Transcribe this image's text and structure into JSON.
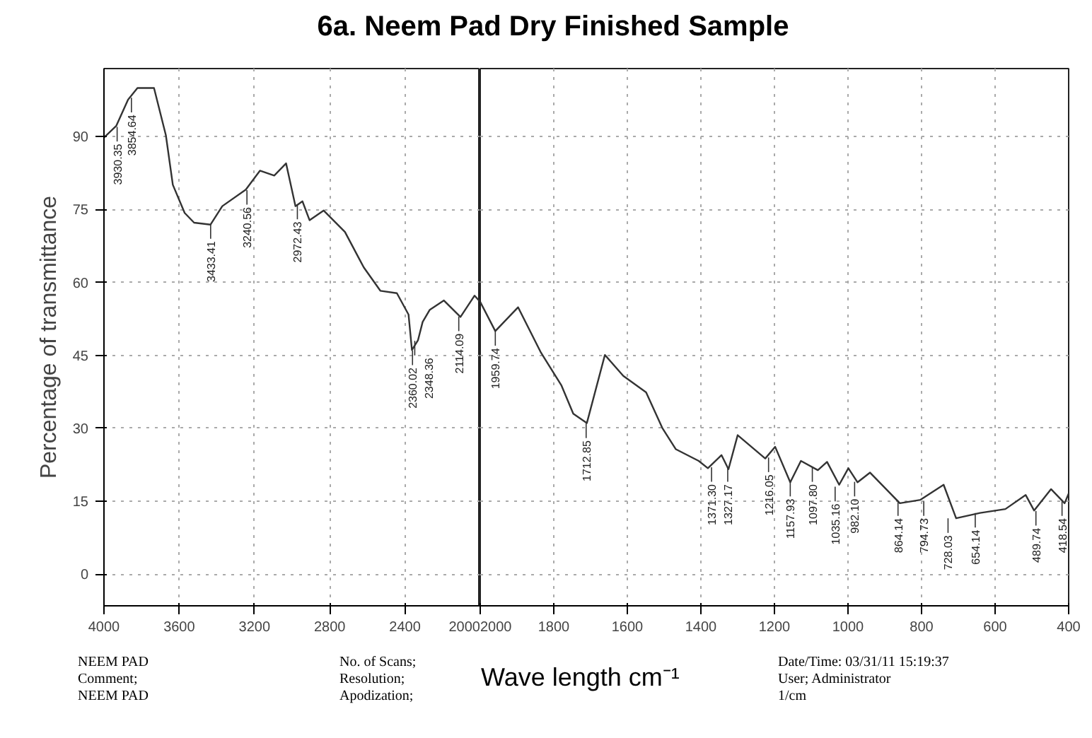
{
  "chart_data": [
    {
      "type": "line",
      "title": "6a. Neem Pad Dry Finished Sample",
      "ylabel": "Percentage of transmittance",
      "color": "#333333",
      "grid": true,
      "xlim": [
        4000,
        2000
      ],
      "xticks": [
        4000,
        3600,
        3200,
        2800,
        2400,
        2000
      ],
      "ylim": [
        -6.5,
        104
      ],
      "yticks": [
        0,
        15,
        30,
        45,
        60,
        75,
        90
      ],
      "x": [
        4000,
        3935,
        3872,
        3822,
        3734,
        3671,
        3634,
        3571,
        3521,
        3434,
        3371,
        3246,
        3171,
        3095,
        3032,
        2982,
        2945,
        2907,
        2832,
        2719,
        2619,
        2531,
        2443,
        2381,
        2363,
        2331,
        2306,
        2268,
        2193,
        2105,
        2030,
        2000
      ],
      "values": [
        89.8,
        92.2,
        97.6,
        100,
        100,
        90.3,
        80.1,
        74.3,
        72.3,
        71.9,
        75.7,
        79.1,
        83,
        82,
        84.5,
        75.7,
        76.7,
        72.8,
        74.8,
        70.4,
        63.1,
        58.3,
        57.8,
        53.4,
        46.1,
        48.1,
        51.9,
        54.4,
        56.3,
        52.9,
        57.3,
        56
      ],
      "annotations": [
        {
          "text": "3930.35",
          "x": 3930,
          "y": 92
        },
        {
          "text": "3854.64",
          "x": 3854,
          "y": 98
        },
        {
          "text": "3433.41",
          "x": 3433,
          "y": 72
        },
        {
          "text": "3240.56",
          "x": 3240,
          "y": 79
        },
        {
          "text": "2972.43",
          "x": 2972,
          "y": 76
        },
        {
          "text": "2360.02",
          "x": 2360,
          "y": 46
        },
        {
          "text": "2348.36",
          "x": 2348,
          "y": 48
        },
        {
          "text": "2114.09",
          "x": 2114,
          "y": 53
        },
        "NEEM PAD",
        "Comment;",
        "NEEM PAD",
        "No. of Scans;",
        "Resolution;",
        "Apodization;",
        "Date/Time: 03/31/11 15:19:37",
        "User;",
        "Administrator"
      ]
    },
    {
      "type": "line",
      "xlabel": "Wave length cm⁻¹",
      "color": "#333333",
      "grid": true,
      "tick_labels": "x",
      "xlim": [
        2000,
        400
      ],
      "xticks": [
        2000,
        1800,
        1600,
        1400,
        1200,
        1000,
        800,
        600,
        400
      ],
      "ylim": [
        -6.5,
        104
      ],
      "yticks": [
        0,
        15,
        30,
        45,
        60,
        75,
        90
      ],
      "x": [
        2000,
        1959,
        1897,
        1835,
        1779,
        1747,
        1710,
        1661,
        1611,
        1549,
        1505,
        1468,
        1406,
        1381,
        1344,
        1325,
        1300,
        1225,
        1198,
        1157,
        1128,
        1082,
        1057,
        1024,
        999,
        974,
        940,
        859,
        803,
        740,
        706,
        641,
        572,
        517,
        494,
        448,
        411,
        400
      ],
      "values": [
        56,
        50,
        54.9,
        45.6,
        38.8,
        33,
        31.1,
        45.1,
        40.8,
        37.4,
        30.1,
        25.7,
        23.3,
        21.8,
        24.5,
        21.6,
        28.6,
        23.8,
        26.2,
        18.9,
        23.3,
        21.4,
        23.1,
        18.4,
        21.8,
        18.9,
        20.9,
        14.6,
        15.3,
        18.4,
        11.5,
        12.6,
        13.4,
        16.3,
        13.1,
        17.5,
        14.6,
        16.6
      ],
      "annotations": [
        {
          "text": "1959.74",
          "x": 1959,
          "y": 50
        },
        {
          "text": "1712.85",
          "x": 1712,
          "y": 31
        },
        {
          "text": "1371.30",
          "x": 1371,
          "y": 22
        },
        {
          "text": "1327.17",
          "x": 1327,
          "y": 22
        },
        {
          "text": "1216.05",
          "x": 1216,
          "y": 24
        },
        {
          "text": "1157.93",
          "x": 1157,
          "y": 19
        },
        {
          "text": "1097.80",
          "x": 1097,
          "y": 22
        },
        {
          "text": "1035.16",
          "x": 1035,
          "y": 18
        },
        {
          "text": "982.10",
          "x": 982,
          "y": 19
        },
        {
          "text": "864.14",
          "x": 864,
          "y": 15
        },
        {
          "text": "794.73",
          "x": 794,
          "y": 15
        },
        {
          "text": "728.03",
          "x": 728,
          "y": 11.5
        },
        {
          "text": "654.14",
          "x": 654,
          "y": 12.6
        },
        {
          "text": "489.74",
          "x": 489,
          "y": 13
        },
        {
          "text": "418.54",
          "x": 418,
          "y": 15
        },
        "1/cm"
      ]
    }
  ]
}
